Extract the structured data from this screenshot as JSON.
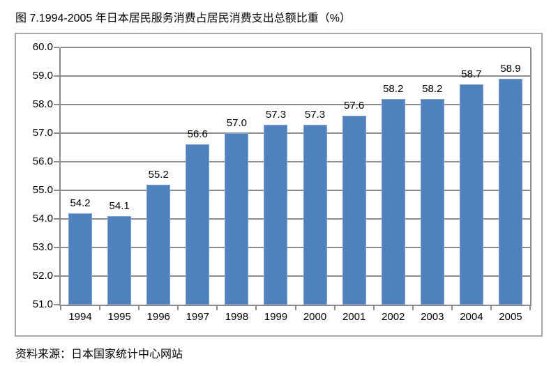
{
  "title": "图 7.1994-2005 年日本居民服务消费占居民消费支出总额比重（%）",
  "source": "资料来源：日本国家统计中心网站",
  "chart_data": {
    "type": "bar",
    "title": "图 7.1994-2005 年日本居民服务消费占居民消费支出总额比重（%）",
    "categories": [
      "1994",
      "1995",
      "1996",
      "1997",
      "1998",
      "1999",
      "2000",
      "2001",
      "2002",
      "2003",
      "2004",
      "2005"
    ],
    "values": [
      54.2,
      54.1,
      55.2,
      56.6,
      57.0,
      57.3,
      57.3,
      57.6,
      58.2,
      58.2,
      58.7,
      58.9
    ],
    "value_labels": [
      "54.2",
      "54.1",
      "55.2",
      "56.6",
      "57.0",
      "57.3",
      "57.3",
      "57.6",
      "58.2",
      "58.2",
      "58.7",
      "58.9"
    ],
    "xlabel": "",
    "ylabel": "",
    "ylim": [
      51.0,
      60.0
    ],
    "ytick_step": 1.0,
    "ytick_labels": [
      "51.0",
      "52.0",
      "53.0",
      "54.0",
      "55.0",
      "56.0",
      "57.0",
      "58.0",
      "59.0",
      "60.0"
    ],
    "grid": true,
    "legend": "none",
    "source_note": "资料来源：日本国家统计中心网站",
    "colors": {
      "bar_fill": "#4F81BD",
      "bar_border": "#7DA2D3",
      "gridline": "#8C8C8C",
      "axis": "#8C8C8C",
      "frame_border": "#A6A6A6",
      "text": "#000000"
    }
  }
}
